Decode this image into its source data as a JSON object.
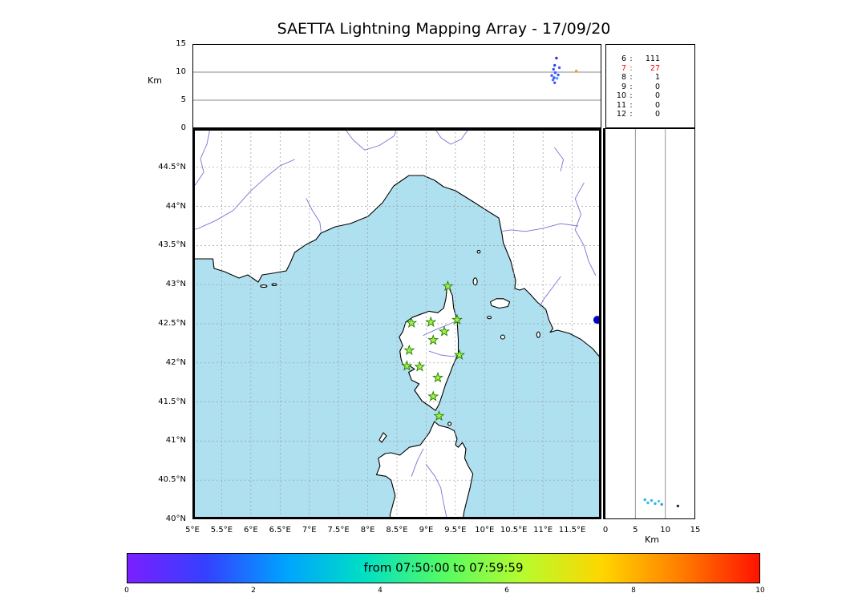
{
  "title": "SAETTA Lightning Mapping Array - 17/09/20",
  "axes": {
    "altitude_left": {
      "label": "Km",
      "ticks": [
        {
          "v": 15,
          "t": "15"
        },
        {
          "v": 10,
          "t": "10"
        },
        {
          "v": 5,
          "t": "5"
        },
        {
          "v": 0,
          "t": "0"
        }
      ]
    },
    "map_lon": {
      "ticks": [
        {
          "v": 5,
          "t": "5°E"
        },
        {
          "v": 5.5,
          "t": "5.5°E"
        },
        {
          "v": 6,
          "t": "6°E"
        },
        {
          "v": 6.5,
          "t": "6.5°E"
        },
        {
          "v": 7,
          "t": "7°E"
        },
        {
          "v": 7.5,
          "t": "7.5°E"
        },
        {
          "v": 8,
          "t": "8°E"
        },
        {
          "v": 8.5,
          "t": "8.5°E"
        },
        {
          "v": 9,
          "t": "9°E"
        },
        {
          "v": 9.5,
          "t": "9.5°E"
        },
        {
          "v": 10,
          "t": "10°E"
        },
        {
          "v": 10.5,
          "t": "10.5°E"
        },
        {
          "v": 11,
          "t": "11°E"
        },
        {
          "v": 11.5,
          "t": "11.5°E"
        }
      ]
    },
    "map_lat": {
      "ticks": [
        {
          "v": 44.5,
          "t": "44.5°N"
        },
        {
          "v": 44,
          "t": "44°N"
        },
        {
          "v": 43.5,
          "t": "43.5°N"
        },
        {
          "v": 43,
          "t": "43°N"
        },
        {
          "v": 42.5,
          "t": "42.5°N"
        },
        {
          "v": 42,
          "t": "42°N"
        },
        {
          "v": 41.5,
          "t": "41.5°N"
        },
        {
          "v": 41,
          "t": "41°N"
        },
        {
          "v": 40.5,
          "t": "40.5°N"
        },
        {
          "v": 40,
          "t": "40°N"
        }
      ]
    },
    "altitude_bottom": {
      "label": "Km",
      "ticks": [
        {
          "v": 0,
          "t": "0"
        },
        {
          "v": 5,
          "t": "5"
        },
        {
          "v": 10,
          "t": "10"
        },
        {
          "v": 15,
          "t": "15"
        }
      ]
    }
  },
  "colorbar": {
    "label": "from 07:50:00 to 07:59:59",
    "min": 0,
    "max": 10,
    "ticks": [
      {
        "v": 0,
        "t": "0"
      },
      {
        "v": 2,
        "t": "2"
      },
      {
        "v": 4,
        "t": "4"
      },
      {
        "v": 6,
        "t": "6"
      },
      {
        "v": 8,
        "t": "8"
      },
      {
        "v": 10,
        "t": "10"
      }
    ],
    "gradient": [
      "#7b1fff",
      "#3440ff",
      "#00a2ff",
      "#00dfc4",
      "#55fb63",
      "#b6fb2e",
      "#ffd600",
      "#ff7d00",
      "#ff1200"
    ]
  },
  "colors": {
    "sea": "#afe0ef",
    "land": "#ffffff",
    "coast": "#000000",
    "river": "#7474d8",
    "grid": "#999999",
    "station_fill": "#9cf441",
    "station_edge": "#267a00",
    "highlight_text": "#ff0000"
  },
  "chart_data": [
    {
      "id": "alt_lon",
      "type": "scatter",
      "x_axis": "Longitude (°E)",
      "y_axis": "Altitude (Km)",
      "xlim": [
        5,
        12
      ],
      "ylim": [
        0,
        15
      ],
      "points": [
        {
          "x": 11.15,
          "y": 9.4,
          "c": "#4256ff"
        },
        {
          "x": 11.18,
          "y": 10.5,
          "c": "#3b4cff"
        },
        {
          "x": 11.21,
          "y": 9.9,
          "c": "#4256ff"
        },
        {
          "x": 11.17,
          "y": 8.6,
          "c": "#5a6aff"
        },
        {
          "x": 11.2,
          "y": 8.1,
          "c": "#4256ff"
        },
        {
          "x": 11.24,
          "y": 8.9,
          "c": "#38a8ff"
        },
        {
          "x": 11.26,
          "y": 9.5,
          "c": "#4256ff"
        },
        {
          "x": 11.2,
          "y": 11.2,
          "c": "#3340f0"
        },
        {
          "x": 11.23,
          "y": 12.5,
          "c": "#2a32e0"
        },
        {
          "x": 11.28,
          "y": 10.8,
          "c": "#4256ff"
        },
        {
          "x": 11.19,
          "y": 9.0,
          "c": "#3b4cff"
        },
        {
          "x": 11.57,
          "y": 10.2,
          "c": "#ff9c1e"
        }
      ]
    },
    {
      "id": "map_plan",
      "type": "scatter",
      "x_axis": "Longitude (°E)",
      "y_axis": "Latitude (°N)",
      "xlim": [
        5,
        12
      ],
      "ylim": [
        40,
        45
      ],
      "points": [
        {
          "x": 11.93,
          "y": 42.55,
          "c": "#0008c0",
          "r": 5
        }
      ],
      "stations": [
        [
          9.37,
          42.98
        ],
        [
          8.75,
          42.51
        ],
        [
          9.08,
          42.52
        ],
        [
          9.53,
          42.55
        ],
        [
          9.31,
          42.4
        ],
        [
          9.12,
          42.29
        ],
        [
          8.71,
          42.16
        ],
        [
          9.57,
          42.1
        ],
        [
          8.67,
          41.96
        ],
        [
          8.89,
          41.95
        ],
        [
          9.2,
          41.81
        ],
        [
          9.12,
          41.57
        ],
        [
          9.22,
          41.32
        ]
      ]
    },
    {
      "id": "alt_lat",
      "type": "scatter",
      "x_axis": "Altitude (Km)",
      "y_axis": "Latitude (°N)",
      "xlim": [
        0,
        15
      ],
      "ylim": [
        40,
        45
      ],
      "points": [
        {
          "x": 6.6,
          "y": 40.25,
          "c": "#35b4e8"
        },
        {
          "x": 7.1,
          "y": 40.21,
          "c": "#2fc4dc"
        },
        {
          "x": 7.7,
          "y": 40.24,
          "c": "#44b0ee"
        },
        {
          "x": 8.3,
          "y": 40.2,
          "c": "#35b4e8"
        },
        {
          "x": 8.9,
          "y": 40.23,
          "c": "#52c8ee"
        },
        {
          "x": 9.4,
          "y": 40.19,
          "c": "#309ce8"
        },
        {
          "x": 12.1,
          "y": 40.17,
          "c": "#1a2a6a"
        }
      ]
    },
    {
      "id": "station_counts",
      "type": "table",
      "rows": [
        {
          "label": "6",
          "value": "111",
          "red": false
        },
        {
          "label": "7",
          "value": "27",
          "red": true
        },
        {
          "label": "8",
          "value": "1",
          "red": false
        },
        {
          "label": "9",
          "value": "0",
          "red": false
        },
        {
          "label": "10",
          "value": "0",
          "red": false
        },
        {
          "label": "11",
          "value": "0",
          "red": false
        },
        {
          "label": "12",
          "value": "0",
          "red": false
        }
      ]
    }
  ]
}
